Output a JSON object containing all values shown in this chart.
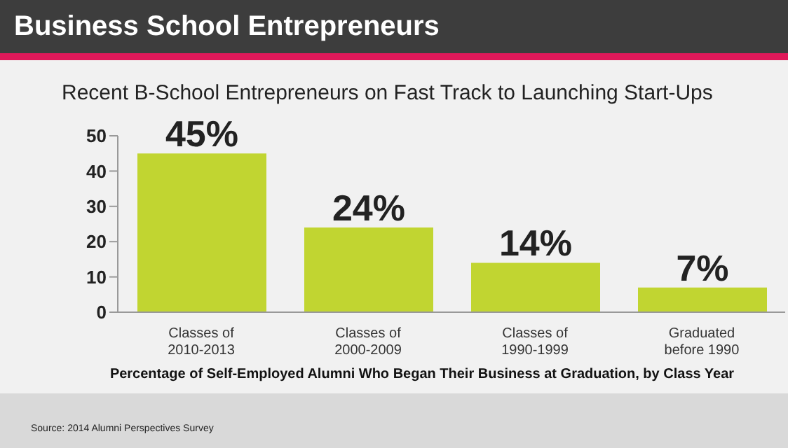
{
  "chart_data": {
    "type": "bar",
    "title": "Business School Entrepreneurs",
    "subtitle": "Recent B-School Entrepreneurs on Fast Track to Launching Start-Ups",
    "xlabel": "Percentage of Self-Employed Alumni Who Began Their Business at Graduation, by Class Year",
    "categories": [
      "Classes of\n2010-2013",
      "Classes of\n2000-2009",
      "Classes of\n1990-1999",
      "Graduated\nbefore 1990"
    ],
    "values": [
      45,
      24,
      14,
      7
    ],
    "value_labels": [
      "45%",
      "24%",
      "14%",
      "7%"
    ],
    "color": "#c1d531",
    "ylim": [
      0,
      50
    ],
    "yticks": [
      0,
      10,
      20,
      30,
      40,
      50
    ],
    "grid": false,
    "legend": false,
    "annotations": [
      "Source: 2014 Alumni Perspectives Survey"
    ]
  }
}
